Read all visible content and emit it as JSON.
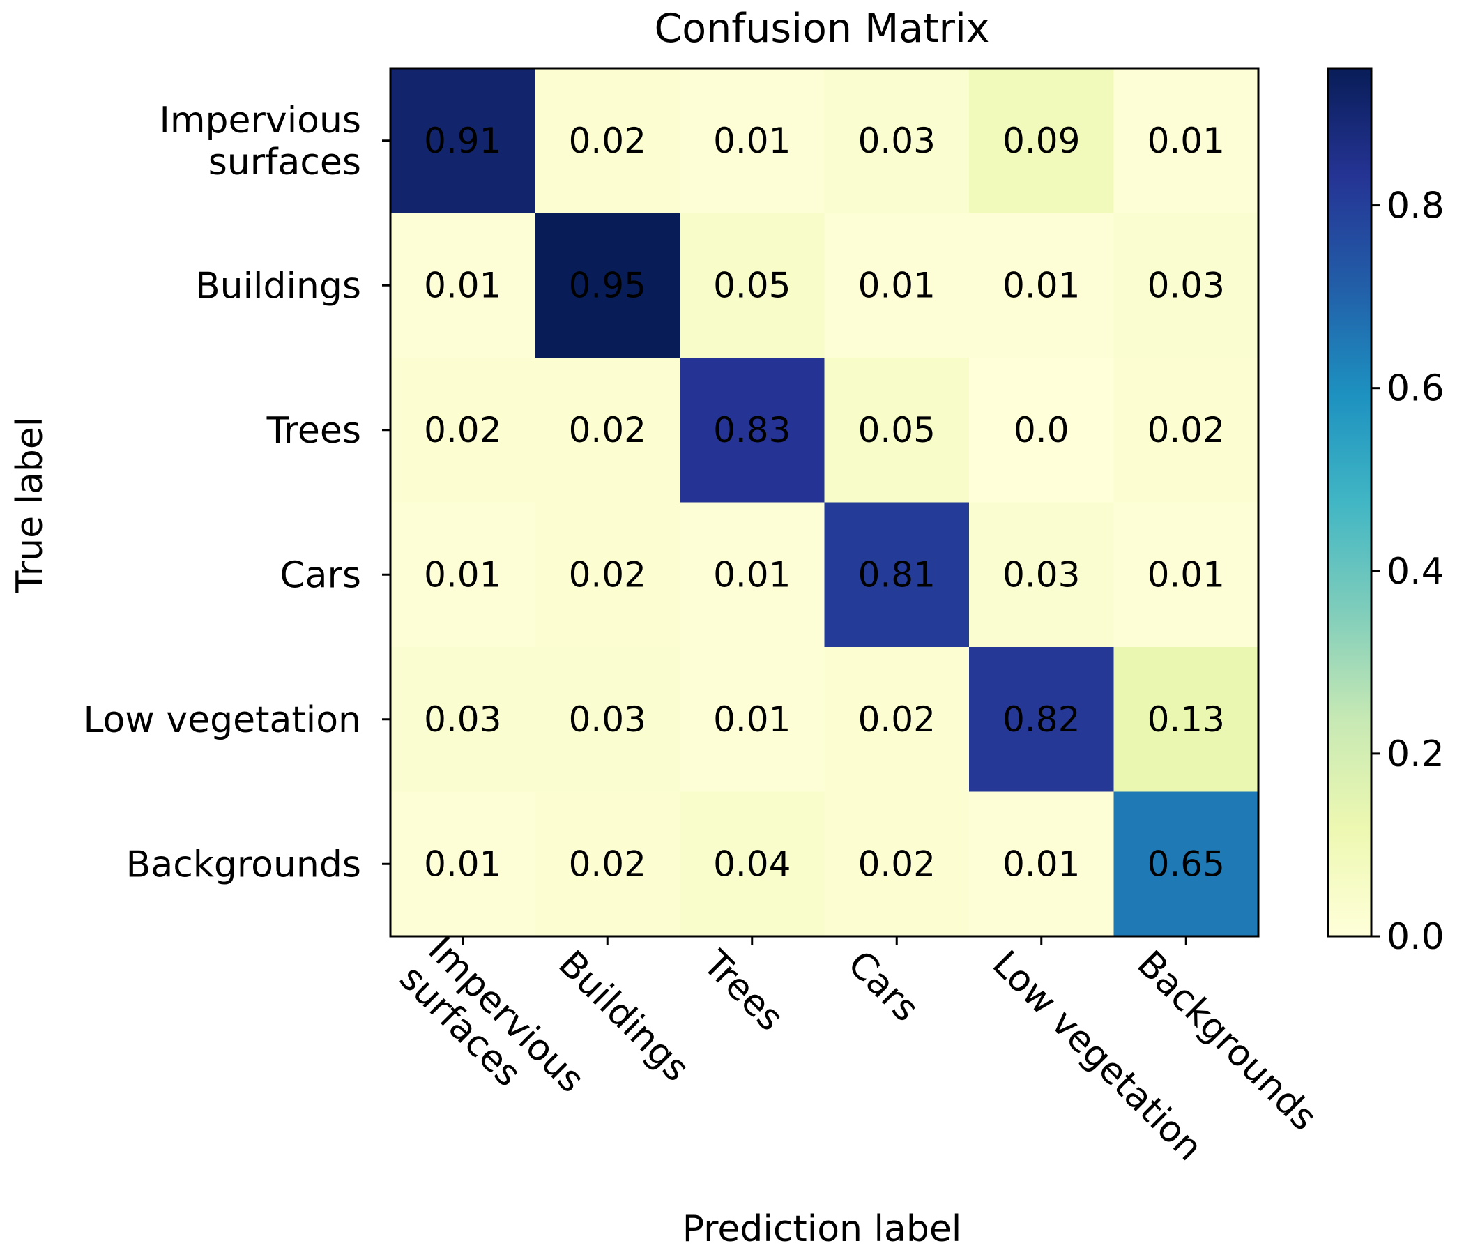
{
  "chart_data": {
    "type": "heatmap",
    "title": "Confusion Matrix",
    "xlabel": "Prediction label",
    "ylabel": "True label",
    "x_categories": [
      "Impervious surfaces",
      "Buildings",
      "Trees",
      "Cars",
      "Low vegetation",
      "Backgrounds"
    ],
    "y_categories": [
      "Impervious surfaces",
      "Buildings",
      "Trees",
      "Cars",
      "Low vegetation",
      "Backgrounds"
    ],
    "x_tick_lines": [
      [
        "Impervious",
        "surfaces"
      ],
      [
        "Buildings"
      ],
      [
        "Trees"
      ],
      [
        "Cars"
      ],
      [
        "Low vegetation"
      ],
      [
        "Backgrounds"
      ]
    ],
    "y_tick_lines": [
      [
        "Impervious",
        "surfaces"
      ],
      [
        "Buildings"
      ],
      [
        "Trees"
      ],
      [
        "Cars"
      ],
      [
        "Low vegetation"
      ],
      [
        "Backgrounds"
      ]
    ],
    "values": [
      [
        0.91,
        0.02,
        0.01,
        0.03,
        0.09,
        0.01
      ],
      [
        0.01,
        0.95,
        0.05,
        0.01,
        0.01,
        0.03
      ],
      [
        0.02,
        0.02,
        0.83,
        0.05,
        0.0,
        0.02
      ],
      [
        0.01,
        0.02,
        0.01,
        0.81,
        0.03,
        0.01
      ],
      [
        0.03,
        0.03,
        0.01,
        0.02,
        0.82,
        0.13
      ],
      [
        0.01,
        0.02,
        0.04,
        0.02,
        0.01,
        0.65
      ]
    ],
    "value_labels": [
      [
        "0.91",
        "0.02",
        "0.01",
        "0.03",
        "0.09",
        "0.01"
      ],
      [
        "0.01",
        "0.95",
        "0.05",
        "0.01",
        "0.01",
        "0.03"
      ],
      [
        "0.02",
        "0.02",
        "0.83",
        "0.05",
        "0.0",
        "0.02"
      ],
      [
        "0.01",
        "0.02",
        "0.01",
        "0.81",
        "0.03",
        "0.01"
      ],
      [
        "0.03",
        "0.03",
        "0.01",
        "0.02",
        "0.82",
        "0.13"
      ],
      [
        "0.01",
        "0.02",
        "0.04",
        "0.02",
        "0.01",
        "0.65"
      ]
    ],
    "colormap": "YlGnBu",
    "colorbar": {
      "vmin": 0.0,
      "vmax": 0.95,
      "ticks": [
        0.0,
        0.2,
        0.4,
        0.6,
        0.8
      ],
      "tick_labels": [
        "0.0",
        "0.2",
        "0.4",
        "0.6",
        "0.8"
      ]
    },
    "grid": false
  }
}
